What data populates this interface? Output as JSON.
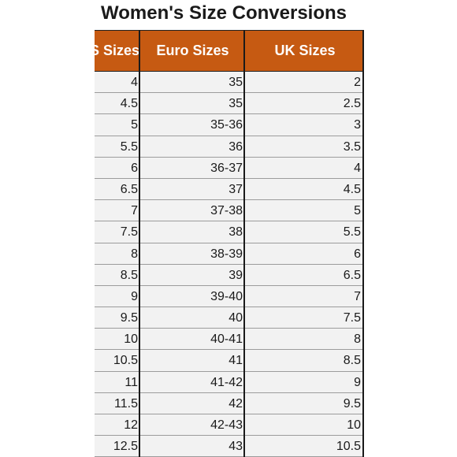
{
  "title": "Women's Size Conversions",
  "headers": {
    "us": "S Sizes",
    "euro": "Euro Sizes",
    "uk": "UK Sizes"
  },
  "rows": [
    {
      "us": "4",
      "euro": "35",
      "uk": "2"
    },
    {
      "us": "4.5",
      "euro": "35",
      "uk": "2.5"
    },
    {
      "us": "5",
      "euro": "35-36",
      "uk": "3"
    },
    {
      "us": "5.5",
      "euro": "36",
      "uk": "3.5"
    },
    {
      "us": "6",
      "euro": "36-37",
      "uk": "4"
    },
    {
      "us": "6.5",
      "euro": "37",
      "uk": "4.5"
    },
    {
      "us": "7",
      "euro": "37-38",
      "uk": "5"
    },
    {
      "us": "7.5",
      "euro": "38",
      "uk": "5.5"
    },
    {
      "us": "8",
      "euro": "38-39",
      "uk": "6"
    },
    {
      "us": "8.5",
      "euro": "39",
      "uk": "6.5"
    },
    {
      "us": "9",
      "euro": "39-40",
      "uk": "7"
    },
    {
      "us": "9.5",
      "euro": "40",
      "uk": "7.5"
    },
    {
      "us": "10",
      "euro": "40-41",
      "uk": "8"
    },
    {
      "us": "10.5",
      "euro": "41",
      "uk": "8.5"
    },
    {
      "us": "11",
      "euro": "41-42",
      "uk": "9"
    },
    {
      "us": "11.5",
      "euro": "42",
      "uk": "9.5"
    },
    {
      "us": "12",
      "euro": "42-43",
      "uk": "10"
    },
    {
      "us": "12.5",
      "euro": "43",
      "uk": "10.5"
    }
  ],
  "colors": {
    "header_bg": "#c65a12",
    "row_bg": "#f2f2f2",
    "header_text": "#ffffff"
  }
}
